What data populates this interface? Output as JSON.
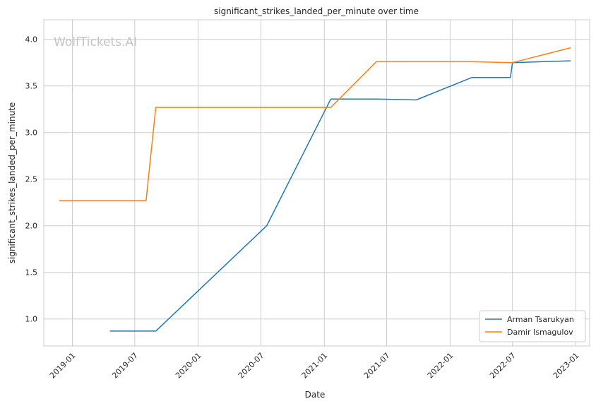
{
  "chart_data": {
    "type": "line",
    "title": "significant_strikes_landed_per_minute over time",
    "xlabel": "Date",
    "ylabel": "significant_strikes_landed_per_minute",
    "watermark": "WolfTickets.AI",
    "x_ticks": [
      "2019-01",
      "2019-07",
      "2020-01",
      "2020-07",
      "2021-01",
      "2021-07",
      "2022-01",
      "2022-07",
      "2023-01"
    ],
    "y_ticks": [
      "1.0",
      "1.5",
      "2.0",
      "2.5",
      "3.0",
      "3.5",
      "4.0"
    ],
    "xlim": [
      "2018-10-10",
      "2023-02-10"
    ],
    "ylim": [
      0.71,
      4.21
    ],
    "grid": true,
    "legend_position": "lower-right",
    "series": [
      {
        "name": "Arman Tsarukyan",
        "color": "#1f77b4",
        "points": [
          [
            "2019-04-20",
            0.87
          ],
          [
            "2019-08-31",
            0.87
          ],
          [
            "2020-07-18",
            2.0
          ],
          [
            "2021-01-20",
            3.36
          ],
          [
            "2021-06-01",
            3.36
          ],
          [
            "2021-09-25",
            3.35
          ],
          [
            "2022-03-05",
            3.59
          ],
          [
            "2022-06-25",
            3.59
          ],
          [
            "2022-07-01",
            3.75
          ],
          [
            "2022-12-17",
            3.77
          ]
        ]
      },
      {
        "name": "Damir Ismagulov",
        "color": "#ff7f0e",
        "points": [
          [
            "2018-11-24",
            2.27
          ],
          [
            "2019-08-03",
            2.27
          ],
          [
            "2019-08-31",
            3.27
          ],
          [
            "2021-01-20",
            3.27
          ],
          [
            "2021-06-01",
            3.76
          ],
          [
            "2022-03-05",
            3.76
          ],
          [
            "2022-07-01",
            3.75
          ],
          [
            "2022-12-17",
            3.91
          ]
        ]
      }
    ]
  }
}
